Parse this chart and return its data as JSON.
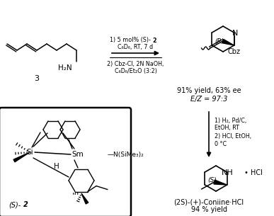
{
  "bg_color": "#ffffff",
  "text_color": "#000000",
  "compound3_label": "3",
  "cond1a": "1) 5 mol% (S)-",
  "cond1a_bold": "2",
  "cond1b": "C₆D₆, RT, 7 d",
  "cond2a": "2) Cbz-Cl, 2N NaOH,",
  "cond2b": "C₆D₆/Et₂O (3:2)",
  "yield1": "91% yield, 63% ee",
  "EZ": "E/Z = 97:3",
  "cond3a": "1) H₂, Pd/C,",
  "cond3b": "EtOH, RT",
  "cond3c": "2) HCl, EtOH,",
  "cond3d": "0 °C",
  "final_name": "(2S)-(+)-Coniine·HCl",
  "final_yield": "94 % yield",
  "R_label": "(R)",
  "S_label": "(S)",
  "S2_label_italic": "(S)-",
  "S2_label_bold": "2",
  "HCl": "• HCl",
  "Cbz": "Cbz",
  "Si": "Si",
  "Sm": "Sm",
  "NSiMe3": "N(SiMe₃)₂",
  "H_label": "H"
}
